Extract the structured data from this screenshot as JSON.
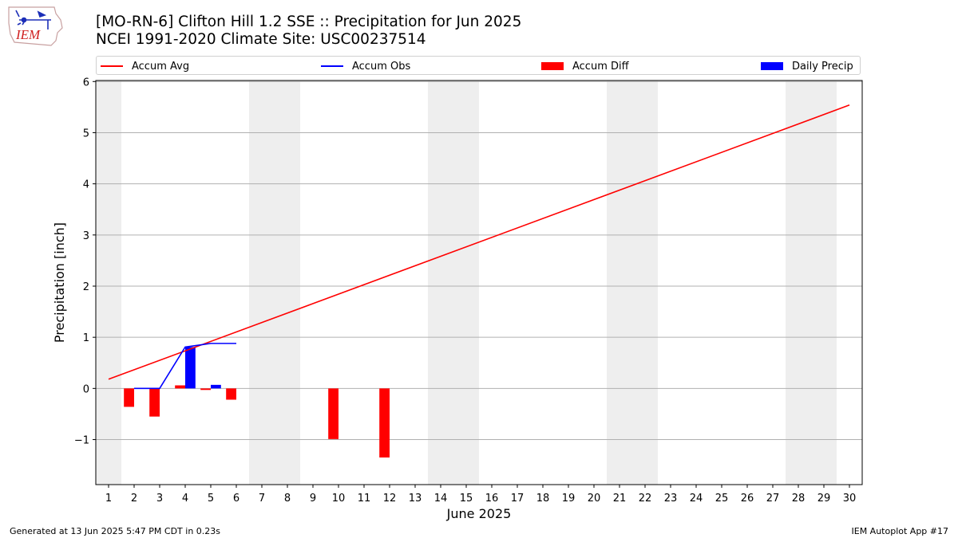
{
  "header": {
    "title_line1": "[MO-RN-6] Clifton Hill 1.2 SSE :: Precipitation for Jun 2025",
    "title_line2": "NCEI 1991-2020 Climate Site: USC00237514"
  },
  "logo": {
    "text": "IEM",
    "icon": "iem-iowa-logo"
  },
  "legend": {
    "items": [
      {
        "label": "Accum Avg",
        "kind": "line",
        "color": "#ff0000"
      },
      {
        "label": "Accum Obs",
        "kind": "line",
        "color": "#0000ff"
      },
      {
        "label": "Accum Diff",
        "kind": "bar",
        "color": "#ff0000"
      },
      {
        "label": "Daily Precip",
        "kind": "bar",
        "color": "#0000ff"
      }
    ]
  },
  "footer": {
    "left": "Generated at 13 Jun 2025 5:47 PM CDT in 0.23s",
    "right": "IEM Autoplot App #17"
  },
  "chart_data": {
    "type": "bar",
    "xlabel": "June 2025",
    "ylabel": "Precipitation [inch]",
    "xlim": [
      0.5,
      30.5
    ],
    "ylim": [
      -1.88,
      6.02
    ],
    "yticks": [
      -1,
      0,
      1,
      2,
      3,
      4,
      5,
      6
    ],
    "ytick_labels": [
      "−1",
      "0",
      "1",
      "2",
      "3",
      "4",
      "5",
      "6"
    ],
    "xticks": [
      1,
      2,
      3,
      4,
      5,
      6,
      7,
      8,
      9,
      10,
      11,
      12,
      13,
      14,
      15,
      16,
      17,
      18,
      19,
      20,
      21,
      22,
      23,
      24,
      25,
      26,
      27,
      28,
      29,
      30
    ],
    "grid": "horizontal",
    "weekend_shading": [
      [
        0.5,
        1.5
      ],
      [
        6.5,
        8.5
      ],
      [
        13.5,
        15.5
      ],
      [
        20.5,
        22.5
      ],
      [
        27.5,
        29.5
      ]
    ],
    "shade_color": "#eeeeee",
    "legend_position": "top",
    "series": [
      {
        "name": "Accum Avg",
        "type": "line",
        "color": "#ff0000",
        "x": [
          1,
          30
        ],
        "values": [
          0.18,
          5.54
        ]
      },
      {
        "name": "Accum Obs",
        "type": "line",
        "color": "#0000ff",
        "x": [
          2,
          3,
          4,
          5,
          6
        ],
        "values": [
          0.0,
          0.0,
          0.81,
          0.88,
          0.88
        ]
      },
      {
        "name": "Accum Diff",
        "type": "bar",
        "color": "#ff0000",
        "offset": -0.2,
        "x": [
          2,
          3,
          4,
          5,
          6,
          10,
          12
        ],
        "values": [
          -0.36,
          -0.55,
          0.06,
          -0.03,
          -0.22,
          -0.99,
          -1.35
        ]
      },
      {
        "name": "Daily Precip",
        "type": "bar",
        "color": "#0000ff",
        "offset": 0.2,
        "x": [
          4,
          5
        ],
        "values": [
          0.81,
          0.07
        ]
      }
    ]
  }
}
